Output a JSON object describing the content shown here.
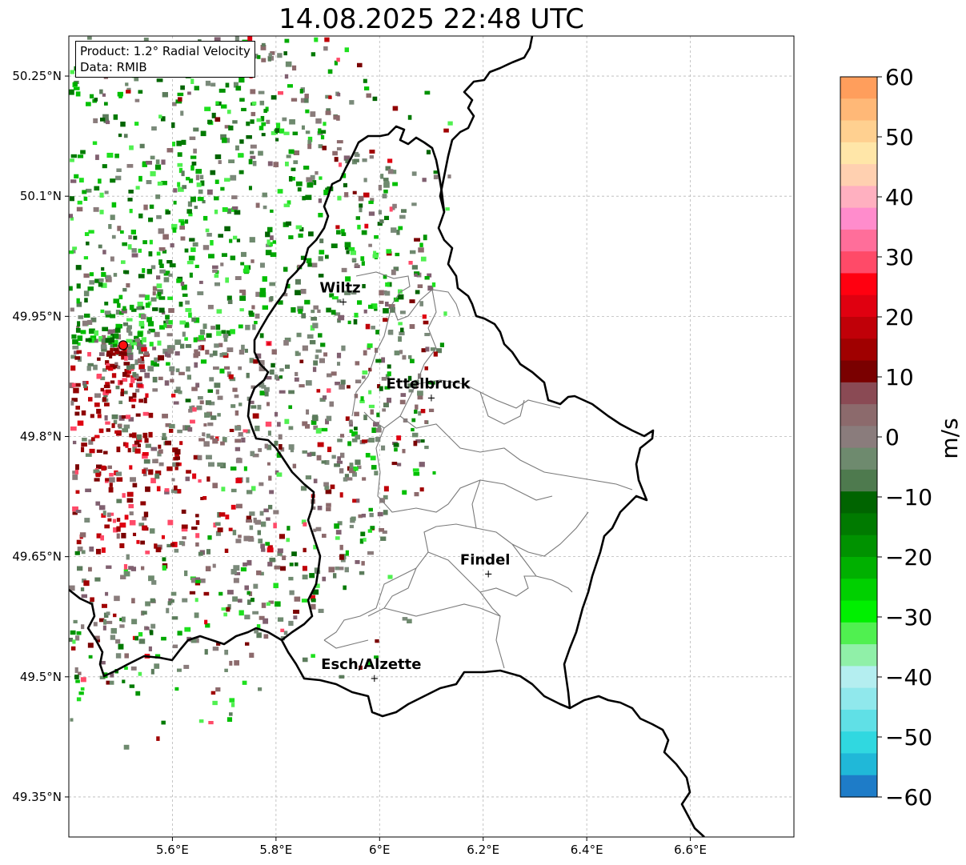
{
  "title": "14.08.2025 22:48 UTC",
  "info": {
    "product": "Product: 1.2° Radial Velocity",
    "data": "Data: RMIB"
  },
  "map": {
    "lon_range": [
      5.4,
      6.8
    ],
    "lat_range": [
      49.3,
      50.3
    ],
    "x_ticks": [
      "5.6°E",
      "5.8°E",
      "6°E",
      "6.2°E",
      "6.4°E",
      "6.6°E"
    ],
    "y_ticks": [
      "50.25°N",
      "50.1°N",
      "49.95°N",
      "49.8°N",
      "49.65°N",
      "49.5°N",
      "49.35°N"
    ],
    "grid": true,
    "radar_site": {
      "lon": 5.505,
      "lat": 49.914
    },
    "cities": [
      {
        "name": "Wiltz",
        "lon": 5.93,
        "lat": 49.97
      },
      {
        "name": "Ettelbruck",
        "lon": 6.1,
        "lat": 49.85
      },
      {
        "name": "Findel",
        "lon": 6.21,
        "lat": 49.63
      },
      {
        "name": "Esch/Alzette",
        "lon": 5.99,
        "lat": 49.5
      }
    ]
  },
  "colorbar": {
    "min": -60,
    "max": 60,
    "ticks": [
      "60",
      "50",
      "40",
      "30",
      "20",
      "10",
      "0",
      "−10",
      "−20",
      "−30",
      "−40",
      "−50",
      "−60"
    ],
    "label": "m/s",
    "colors_top_to_bottom": [
      "#ff9e5c",
      "#ffb877",
      "#ffd090",
      "#ffe6a8",
      "#ffd0b0",
      "#ffb0c0",
      "#ff8ccc",
      "#ff6e9a",
      "#ff4a68",
      "#ff0010",
      "#e00010",
      "#c00008",
      "#a00000",
      "#7a0000",
      "#8a4a54",
      "#8c6a6c",
      "#8a7c7c",
      "#6e8a6e",
      "#4e7a4e",
      "#006400",
      "#007a00",
      "#009200",
      "#00b000",
      "#00d000",
      "#00f000",
      "#50f050",
      "#90f0a8",
      "#b4eef0",
      "#90e8ec",
      "#60e0e6",
      "#30d8e0",
      "#20b8d8",
      "#1e7cc8"
    ]
  }
}
